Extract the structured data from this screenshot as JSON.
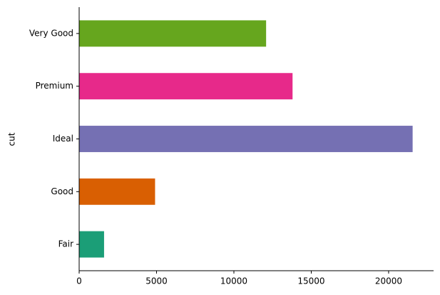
{
  "chart_data": {
    "type": "barh",
    "y_label": "cut",
    "categories": [
      "Fair",
      "Good",
      "Ideal",
      "Premium",
      "Very Good"
    ],
    "values": [
      1610,
      4906,
      21551,
      13791,
      12082
    ],
    "colors": [
      "#1b9e77",
      "#d95f02",
      "#7570b3",
      "#e7298a",
      "#66a61e"
    ],
    "xlim": [
      0,
      22628.55
    ],
    "xticks": [
      0,
      5000,
      10000,
      15000,
      20000
    ]
  }
}
